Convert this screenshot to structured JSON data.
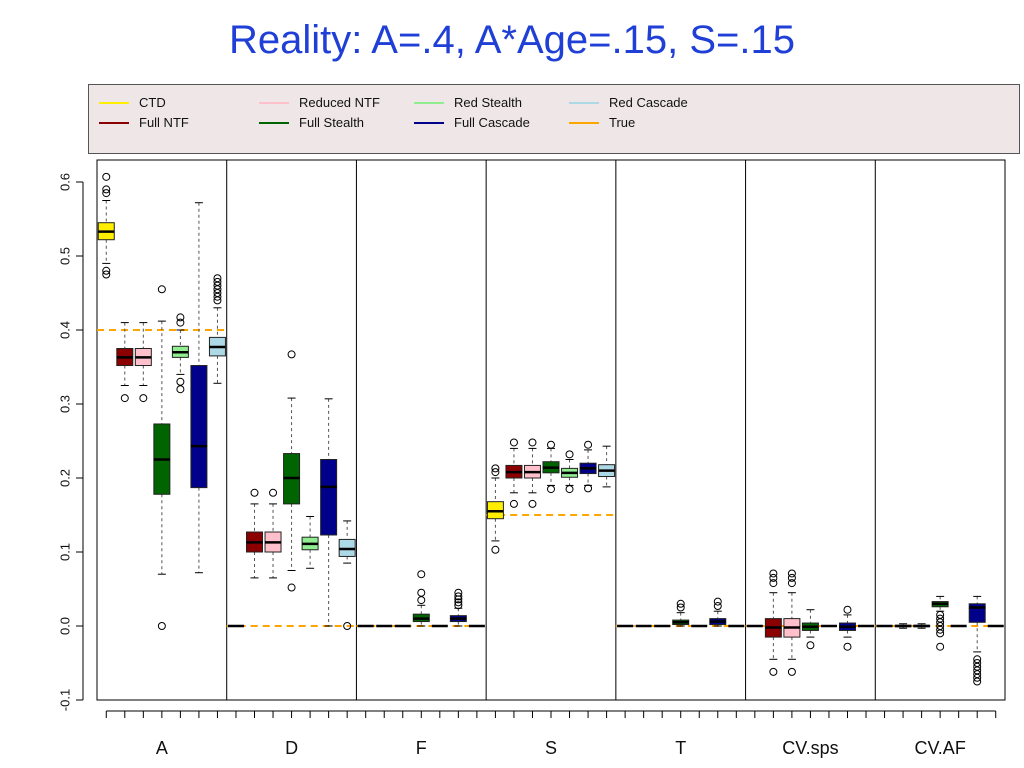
{
  "chart_data": {
    "type": "box",
    "title": "Reality: A=.4, A*Age=.15, S=.15",
    "ylim": [
      -0.1,
      0.6
    ],
    "yticks": [
      -0.1,
      0.0,
      0.1,
      0.2,
      0.3,
      0.4,
      0.5,
      0.6
    ],
    "ytick_labels": [
      "-0.1",
      "0.0",
      "0.1",
      "0.2",
      "0.3",
      "0.4",
      "0.5",
      "0.6"
    ],
    "groups": [
      "A",
      "D",
      "F",
      "S",
      "T",
      "CV.sps",
      "CV.AF"
    ],
    "methods": [
      "CTD",
      "Full NTF",
      "Reduced NTF",
      "Full Stealth",
      "Red Stealth",
      "Full Cascade",
      "Red Cascade"
    ],
    "legend": {
      "placement": "top",
      "entries": [
        {
          "label": "CTD",
          "color": "#ffee00"
        },
        {
          "label": "Full NTF",
          "color": "#8b0000"
        },
        {
          "label": "Reduced NTF",
          "color": "#ffc0cb"
        },
        {
          "label": "Full Stealth",
          "color": "#006400"
        },
        {
          "label": "Red Stealth",
          "color": "#90ee90"
        },
        {
          "label": "Full Cascade",
          "color": "#00008b"
        },
        {
          "label": "Red Cascade",
          "color": "#add8e6"
        },
        {
          "label": "True",
          "color": "#ffa500"
        }
      ]
    },
    "colors": {
      "CTD": "#ffee00",
      "Full NTF": "#8b0000",
      "Reduced NTF": "#ffc0cb",
      "Full Stealth": "#006400",
      "Red Stealth": "#90ee90",
      "Full Cascade": "#00008b",
      "Red Cascade": "#add8e6",
      "True": "#ffa500"
    },
    "true_values": {
      "A": 0.4,
      "D": 0.0,
      "F": 0.0,
      "S": 0.15,
      "T": 0.0,
      "CV.sps": 0.0,
      "CV.AF": 0.0
    },
    "boxes": [
      {
        "group": "A",
        "method": "CTD",
        "whislo": 0.49,
        "q1": 0.522,
        "med": 0.533,
        "q3": 0.545,
        "whishi": 0.575,
        "fliers": [
          0.475,
          0.48,
          0.585,
          0.59,
          0.607
        ]
      },
      {
        "group": "A",
        "method": "Full NTF",
        "whislo": 0.325,
        "q1": 0.352,
        "med": 0.363,
        "q3": 0.375,
        "whishi": 0.41,
        "fliers": [
          0.308
        ]
      },
      {
        "group": "A",
        "method": "Reduced NTF",
        "whislo": 0.325,
        "q1": 0.352,
        "med": 0.363,
        "q3": 0.375,
        "whishi": 0.41,
        "fliers": [
          0.308
        ]
      },
      {
        "group": "A",
        "method": "Full Stealth",
        "whislo": 0.07,
        "q1": 0.178,
        "med": 0.225,
        "q3": 0.273,
        "whishi": 0.412,
        "fliers": [
          0.0,
          0.455
        ]
      },
      {
        "group": "A",
        "method": "Red Stealth",
        "whislo": 0.34,
        "q1": 0.363,
        "med": 0.37,
        "q3": 0.378,
        "whishi": 0.4,
        "fliers": [
          0.32,
          0.33,
          0.41,
          0.417
        ]
      },
      {
        "group": "A",
        "method": "Full Cascade",
        "whislo": 0.072,
        "q1": 0.187,
        "med": 0.243,
        "q3": 0.352,
        "whishi": 0.572,
        "fliers": []
      },
      {
        "group": "A",
        "method": "Red Cascade",
        "whislo": 0.328,
        "q1": 0.365,
        "med": 0.377,
        "q3": 0.39,
        "whishi": 0.43,
        "fliers": [
          0.44,
          0.445,
          0.45,
          0.455,
          0.46,
          0.465,
          0.47
        ]
      },
      {
        "group": "D",
        "method": "CTD",
        "whislo": 0.0,
        "q1": 0.0,
        "med": 0.0,
        "q3": 0.0,
        "whishi": 0.0,
        "fliers": []
      },
      {
        "group": "D",
        "method": "Full NTF",
        "whislo": 0.065,
        "q1": 0.1,
        "med": 0.113,
        "q3": 0.127,
        "whishi": 0.165,
        "fliers": [
          0.18
        ]
      },
      {
        "group": "D",
        "method": "Reduced NTF",
        "whislo": 0.065,
        "q1": 0.1,
        "med": 0.113,
        "q3": 0.127,
        "whishi": 0.165,
        "fliers": [
          0.18
        ]
      },
      {
        "group": "D",
        "method": "Full Stealth",
        "whislo": 0.075,
        "q1": 0.165,
        "med": 0.2,
        "q3": 0.233,
        "whishi": 0.308,
        "fliers": [
          0.052,
          0.367
        ]
      },
      {
        "group": "D",
        "method": "Red Stealth",
        "whislo": 0.078,
        "q1": 0.103,
        "med": 0.111,
        "q3": 0.12,
        "whishi": 0.148,
        "fliers": []
      },
      {
        "group": "D",
        "method": "Full Cascade",
        "whislo": 0.0,
        "q1": 0.123,
        "med": 0.188,
        "q3": 0.225,
        "whishi": 0.307,
        "fliers": []
      },
      {
        "group": "D",
        "method": "Red Cascade",
        "whislo": 0.085,
        "q1": 0.094,
        "med": 0.104,
        "q3": 0.117,
        "whishi": 0.142,
        "fliers": [
          0.0
        ]
      },
      {
        "group": "F",
        "method": "CTD",
        "whislo": 0.0,
        "q1": 0.0,
        "med": 0.0,
        "q3": 0.0,
        "whishi": 0.0,
        "fliers": []
      },
      {
        "group": "F",
        "method": "Full NTF",
        "whislo": 0.0,
        "q1": 0.0,
        "med": 0.0,
        "q3": 0.0,
        "whishi": 0.0,
        "fliers": []
      },
      {
        "group": "F",
        "method": "Reduced NTF",
        "whislo": 0.0,
        "q1": 0.0,
        "med": 0.0,
        "q3": 0.0,
        "whishi": 0.0,
        "fliers": []
      },
      {
        "group": "F",
        "method": "Full Stealth",
        "whislo": 0.0,
        "q1": 0.006,
        "med": 0.01,
        "q3": 0.016,
        "whishi": 0.028,
        "fliers": [
          0.035,
          0.045,
          0.07
        ]
      },
      {
        "group": "F",
        "method": "Red Stealth",
        "whislo": 0.0,
        "q1": 0.0,
        "med": 0.0,
        "q3": 0.0,
        "whishi": 0.0,
        "fliers": []
      },
      {
        "group": "F",
        "method": "Full Cascade",
        "whislo": 0.0,
        "q1": 0.006,
        "med": 0.01,
        "q3": 0.014,
        "whishi": 0.024,
        "fliers": [
          0.028,
          0.032,
          0.036,
          0.04,
          0.045
        ]
      },
      {
        "group": "F",
        "method": "Red Cascade",
        "whislo": 0.0,
        "q1": 0.0,
        "med": 0.0,
        "q3": 0.0,
        "whishi": 0.0,
        "fliers": []
      },
      {
        "group": "S",
        "method": "CTD",
        "whislo": 0.115,
        "q1": 0.145,
        "med": 0.155,
        "q3": 0.168,
        "whishi": 0.2,
        "fliers": [
          0.103,
          0.208,
          0.213
        ]
      },
      {
        "group": "S",
        "method": "Full NTF",
        "whislo": 0.18,
        "q1": 0.2,
        "med": 0.208,
        "q3": 0.217,
        "whishi": 0.24,
        "fliers": [
          0.165,
          0.248
        ]
      },
      {
        "group": "S",
        "method": "Reduced NTF",
        "whislo": 0.18,
        "q1": 0.2,
        "med": 0.208,
        "q3": 0.217,
        "whishi": 0.24,
        "fliers": [
          0.165,
          0.248
        ]
      },
      {
        "group": "S",
        "method": "Full Stealth",
        "whislo": 0.19,
        "q1": 0.207,
        "med": 0.214,
        "q3": 0.222,
        "whishi": 0.24,
        "fliers": [
          0.185,
          0.245
        ]
      },
      {
        "group": "S",
        "method": "Red Stealth",
        "whislo": 0.19,
        "q1": 0.201,
        "med": 0.207,
        "q3": 0.213,
        "whishi": 0.225,
        "fliers": [
          0.185,
          0.232
        ]
      },
      {
        "group": "S",
        "method": "Full Cascade",
        "whislo": 0.19,
        "q1": 0.206,
        "med": 0.213,
        "q3": 0.22,
        "whishi": 0.238,
        "fliers": [
          0.186,
          0.245
        ]
      },
      {
        "group": "S",
        "method": "Red Cascade",
        "whislo": 0.188,
        "q1": 0.202,
        "med": 0.21,
        "q3": 0.218,
        "whishi": 0.243,
        "fliers": []
      },
      {
        "group": "T",
        "method": "CTD",
        "whislo": 0.0,
        "q1": 0.0,
        "med": 0.0,
        "q3": 0.0,
        "whishi": 0.0,
        "fliers": []
      },
      {
        "group": "T",
        "method": "Full NTF",
        "whislo": 0.0,
        "q1": 0.0,
        "med": 0.0,
        "q3": 0.0,
        "whishi": 0.0,
        "fliers": []
      },
      {
        "group": "T",
        "method": "Reduced NTF",
        "whislo": 0.0,
        "q1": 0.0,
        "med": 0.0,
        "q3": 0.0,
        "whishi": 0.0,
        "fliers": []
      },
      {
        "group": "T",
        "method": "Full Stealth",
        "whislo": 0.0,
        "q1": 0.002,
        "med": 0.005,
        "q3": 0.008,
        "whishi": 0.018,
        "fliers": [
          0.025,
          0.03
        ]
      },
      {
        "group": "T",
        "method": "Red Stealth",
        "whislo": 0.0,
        "q1": 0.0,
        "med": 0.0,
        "q3": 0.0,
        "whishi": 0.0,
        "fliers": []
      },
      {
        "group": "T",
        "method": "Full Cascade",
        "whislo": 0.0,
        "q1": 0.002,
        "med": 0.006,
        "q3": 0.01,
        "whishi": 0.02,
        "fliers": [
          0.027,
          0.033
        ]
      },
      {
        "group": "T",
        "method": "Red Cascade",
        "whislo": 0.0,
        "q1": 0.0,
        "med": 0.0,
        "q3": 0.0,
        "whishi": 0.0,
        "fliers": []
      },
      {
        "group": "CV.sps",
        "method": "CTD",
        "whislo": 0.0,
        "q1": 0.0,
        "med": 0.0,
        "q3": 0.0,
        "whishi": 0.0,
        "fliers": []
      },
      {
        "group": "CV.sps",
        "method": "Full NTF",
        "whislo": -0.045,
        "q1": -0.015,
        "med": -0.002,
        "q3": 0.01,
        "whishi": 0.045,
        "fliers": [
          -0.062,
          0.058,
          0.065,
          0.071
        ]
      },
      {
        "group": "CV.sps",
        "method": "Reduced NTF",
        "whislo": -0.045,
        "q1": -0.015,
        "med": -0.002,
        "q3": 0.01,
        "whishi": 0.045,
        "fliers": [
          -0.062,
          0.058,
          0.065,
          0.071
        ]
      },
      {
        "group": "CV.sps",
        "method": "Full Stealth",
        "whislo": -0.015,
        "q1": -0.006,
        "med": -0.001,
        "q3": 0.004,
        "whishi": 0.022,
        "fliers": [
          -0.026
        ]
      },
      {
        "group": "CV.sps",
        "method": "Red Stealth",
        "whislo": 0.0,
        "q1": 0.0,
        "med": 0.0,
        "q3": 0.0,
        "whishi": 0.0,
        "fliers": []
      },
      {
        "group": "CV.sps",
        "method": "Full Cascade",
        "whislo": -0.015,
        "q1": -0.006,
        "med": -0.001,
        "q3": 0.004,
        "whishi": 0.015,
        "fliers": [
          -0.028,
          0.022
        ]
      },
      {
        "group": "CV.sps",
        "method": "Red Cascade",
        "whislo": 0.0,
        "q1": 0.0,
        "med": 0.0,
        "q3": 0.0,
        "whishi": 0.0,
        "fliers": []
      },
      {
        "group": "CV.AF",
        "method": "CTD",
        "whislo": 0.0,
        "q1": 0.0,
        "med": 0.0,
        "q3": 0.0,
        "whishi": 0.0,
        "fliers": []
      },
      {
        "group": "CV.AF",
        "method": "Full NTF",
        "whislo": -0.003,
        "q1": -0.001,
        "med": 0.0,
        "q3": 0.001,
        "whishi": 0.003,
        "fliers": []
      },
      {
        "group": "CV.AF",
        "method": "Reduced NTF",
        "whislo": -0.003,
        "q1": -0.001,
        "med": 0.0,
        "q3": 0.001,
        "whishi": 0.003,
        "fliers": []
      },
      {
        "group": "CV.AF",
        "method": "Full Stealth",
        "whislo": 0.02,
        "q1": 0.026,
        "med": 0.03,
        "q3": 0.033,
        "whishi": 0.04,
        "fliers": [
          -0.028,
          -0.01,
          -0.005,
          0.0,
          0.005,
          0.01,
          0.015
        ]
      },
      {
        "group": "CV.AF",
        "method": "Red Stealth",
        "whislo": 0.0,
        "q1": 0.0,
        "med": 0.0,
        "q3": 0.0,
        "whishi": 0.0,
        "fliers": []
      },
      {
        "group": "CV.AF",
        "method": "Full Cascade",
        "whislo": -0.035,
        "q1": 0.005,
        "med": 0.025,
        "q3": 0.03,
        "whishi": 0.04,
        "fliers": [
          -0.045,
          -0.05,
          -0.055,
          -0.06,
          -0.065,
          -0.07,
          -0.075
        ]
      },
      {
        "group": "CV.AF",
        "method": "Red Cascade",
        "whislo": 0.0,
        "q1": 0.0,
        "med": 0.0,
        "q3": 0.0,
        "whishi": 0.0,
        "fliers": []
      }
    ]
  }
}
